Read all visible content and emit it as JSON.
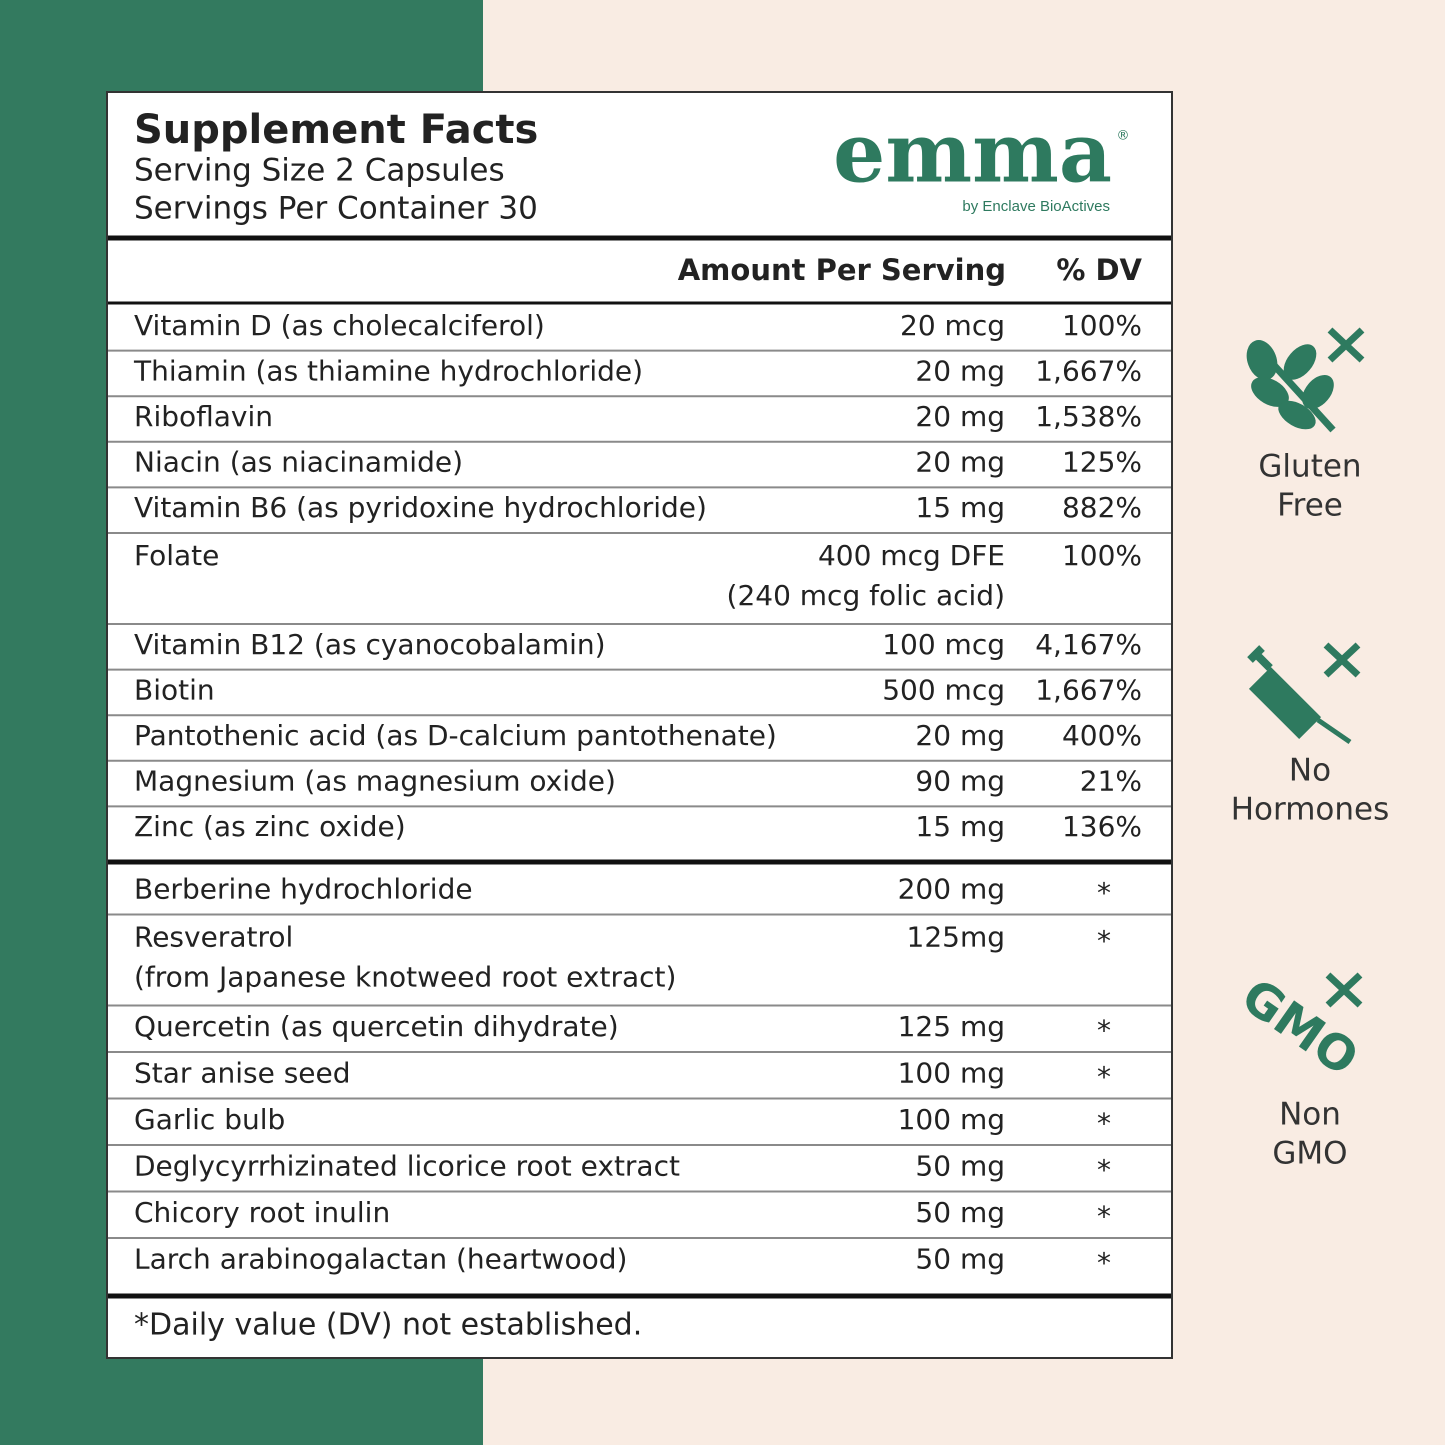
{
  "header": {
    "title": "Supplement Facts",
    "serving_size": "Serving Size 2 Capsules",
    "servings_per_container": "Servings Per Container  30"
  },
  "brand": {
    "name": "emma",
    "mark": "®",
    "tagline": "by Enclave BioActives"
  },
  "table": {
    "columns": [
      "Amount Per Serving",
      "% DV"
    ],
    "sections": [
      {
        "rows": [
          {
            "name": "Vitamin D (as cholecalciferol)",
            "amount": "20 mcg",
            "dv": "100%"
          },
          {
            "name": "Thiamin (as thiamine hydrochloride)",
            "amount": "20 mg",
            "dv": "1,667%"
          },
          {
            "name": "Riboflavin",
            "amount": "20 mg",
            "dv": "1,538%"
          },
          {
            "name": "Niacin (as niacinamide)",
            "amount": "20 mg",
            "dv": "125%"
          },
          {
            "name": "Vitamin B6 (as pyridoxine hydrochloride)",
            "amount": "15 mg",
            "dv": "882%"
          },
          {
            "name": "Folate",
            "amount": "400 mcg DFE",
            "amount_note": "(240 mcg folic acid)",
            "dv": "100%"
          },
          {
            "name": "Vitamin B12 (as cyanocobalamin)",
            "amount": "100 mcg",
            "dv": "4,167%"
          },
          {
            "name": "Biotin",
            "amount": "500 mcg",
            "dv": "1,667%"
          },
          {
            "name": "Pantothenic acid (as D-calcium pantothenate)",
            "amount": "20 mg",
            "dv": "400%"
          },
          {
            "name": "Magnesium (as magnesium oxide)",
            "amount": "90 mg",
            "dv": "21%"
          },
          {
            "name": "Zinc (as zinc oxide)",
            "amount": "15 mg",
            "dv": "136%"
          }
        ]
      },
      {
        "rows": [
          {
            "name": "Berberine hydrochloride",
            "amount": "200 mg",
            "dv": "*"
          },
          {
            "name": "Resveratrol",
            "name_note": "(from Japanese knotweed root extract)",
            "amount": "125mg",
            "dv": "*"
          },
          {
            "name": "Quercetin (as quercetin dihydrate)",
            "amount": "125 mg",
            "dv": "*"
          },
          {
            "name": "Star anise seed",
            "amount": "100 mg",
            "dv": "*"
          },
          {
            "name": "Garlic bulb",
            "amount": "100 mg",
            "dv": "*"
          },
          {
            "name": "Deglycyrrhizinated licorice root extract",
            "amount": "50 mg",
            "dv": "*"
          },
          {
            "name": "Chicory root inulin",
            "amount": "50 mg",
            "dv": "*"
          },
          {
            "name": "Larch arabinogalactan (heartwood)",
            "amount": "50 mg",
            "dv": "*"
          }
        ]
      }
    ],
    "footnote": "*Daily value (DV) not established."
  },
  "badges": [
    {
      "label": [
        "Gluten",
        "Free"
      ]
    },
    {
      "label": [
        "No",
        "Hormones"
      ]
    },
    {
      "icon_text": "GMO",
      "label": [
        "Non",
        "GMO"
      ]
    }
  ]
}
